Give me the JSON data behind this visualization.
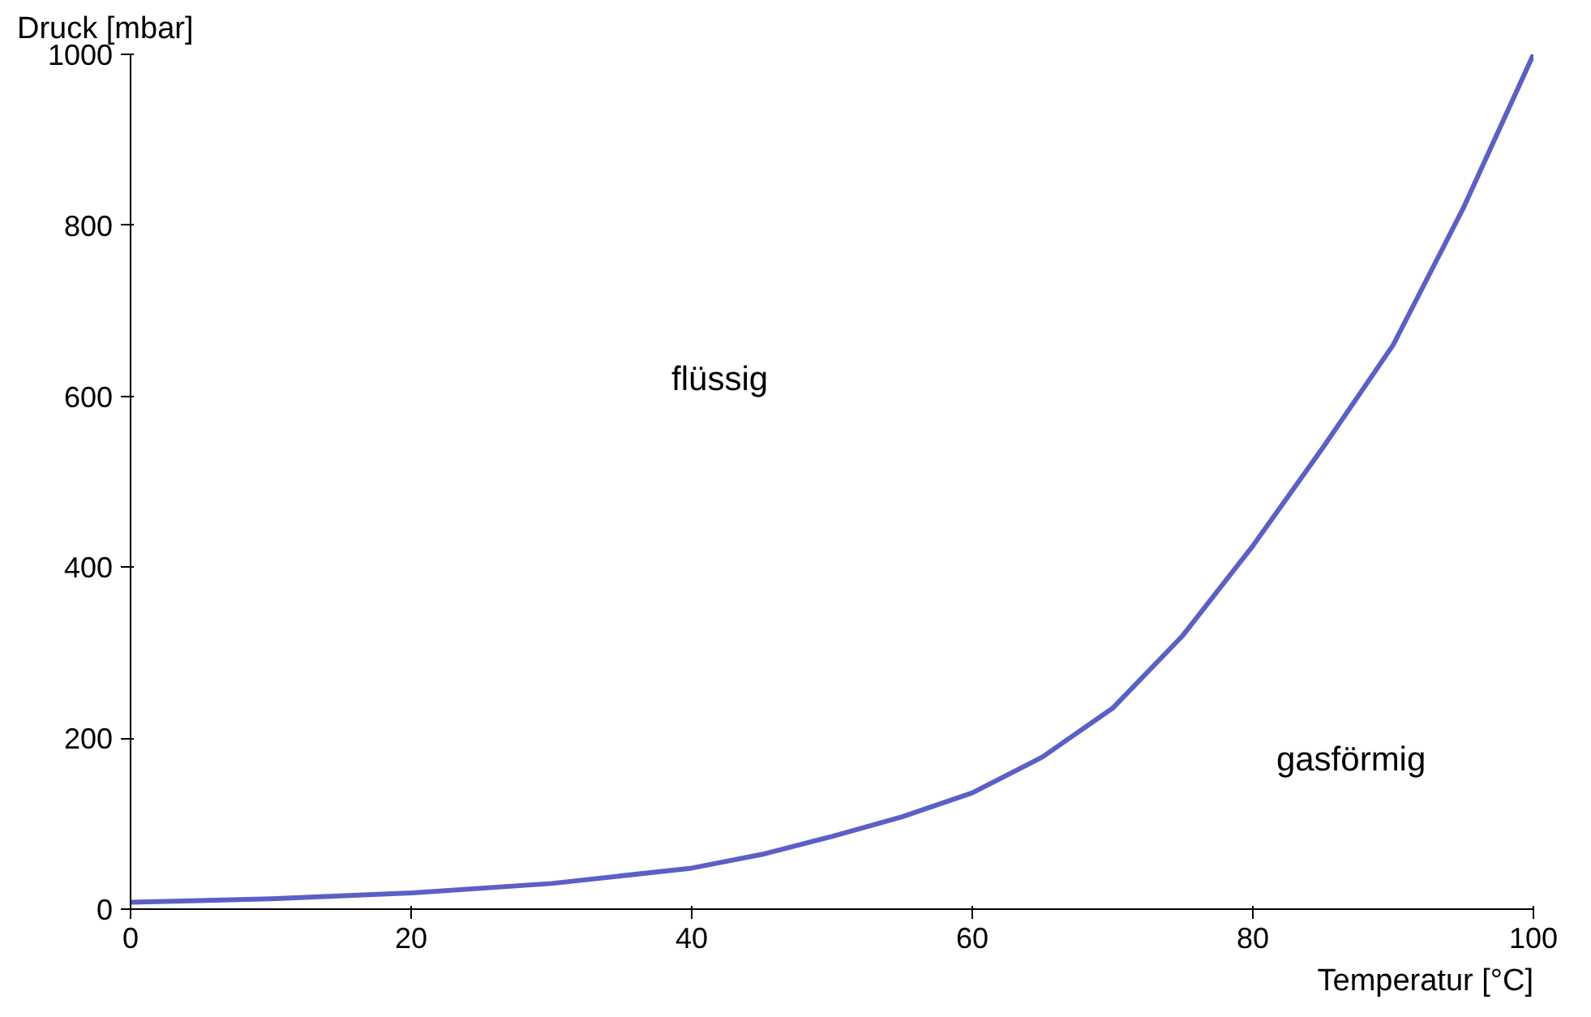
{
  "chart_data": {
    "type": "line",
    "xlabel": "Temperatur [°C]",
    "ylabel": "Druck [mbar]",
    "x": [
      0,
      10,
      20,
      30,
      40,
      45,
      50,
      55,
      60,
      65,
      70,
      75,
      80,
      85,
      90,
      95,
      100
    ],
    "series": [
      {
        "color": "#5b5fc7",
        "values": [
          8,
          12,
          19,
          30,
          48,
          64,
          85,
          108,
          136,
          178,
          235,
          320,
          425,
          540,
          660,
          820,
          1000
        ]
      }
    ],
    "xlim": [
      0,
      100
    ],
    "ylim": [
      0,
      1000
    ],
    "xticks": [
      0,
      20,
      40,
      60,
      80,
      100
    ],
    "yticks": [
      0,
      200,
      400,
      600,
      800,
      1000
    ],
    "grid": false,
    "marker": "none",
    "line_style": "solid",
    "annotations": [
      "flüssig",
      "gasförmig"
    ]
  }
}
